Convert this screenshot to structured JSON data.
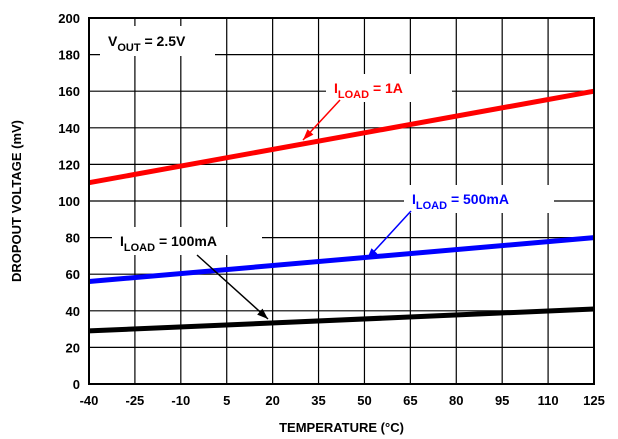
{
  "chart_data": {
    "type": "line",
    "xlabel": "TEMPERATURE (°C)",
    "ylabel": "DROPOUT VOLTAGE (mV)",
    "x_ticks": [
      "-40",
      "-25",
      "-10",
      "5",
      "20",
      "35",
      "50",
      "65",
      "80",
      "95",
      "110",
      "125"
    ],
    "y_ticks": [
      "0",
      "20",
      "40",
      "60",
      "80",
      "100",
      "120",
      "140",
      "160",
      "180",
      "200"
    ],
    "xlim": [
      -40,
      125
    ],
    "ylim": [
      0,
      200
    ],
    "grid": true,
    "condition": {
      "main": "V",
      "sub": "OUT",
      "rest": " = 2.5V"
    },
    "series": [
      {
        "color": "#ff0000",
        "x": [
          -40,
          125
        ],
        "y": [
          110,
          160
        ],
        "label": {
          "main": "I",
          "sub": "LOAD",
          "rest": " = 1A"
        }
      },
      {
        "color": "#0000ff",
        "x": [
          -40,
          125
        ],
        "y": [
          56,
          80
        ],
        "label": {
          "main": "I",
          "sub": "LOAD",
          "rest": " = 500mA"
        }
      },
      {
        "color": "#000000",
        "x": [
          -40,
          125
        ],
        "y": [
          29,
          41
        ],
        "label": {
          "main": "I",
          "sub": "LOAD",
          "rest": " = 100mA"
        }
      }
    ]
  }
}
